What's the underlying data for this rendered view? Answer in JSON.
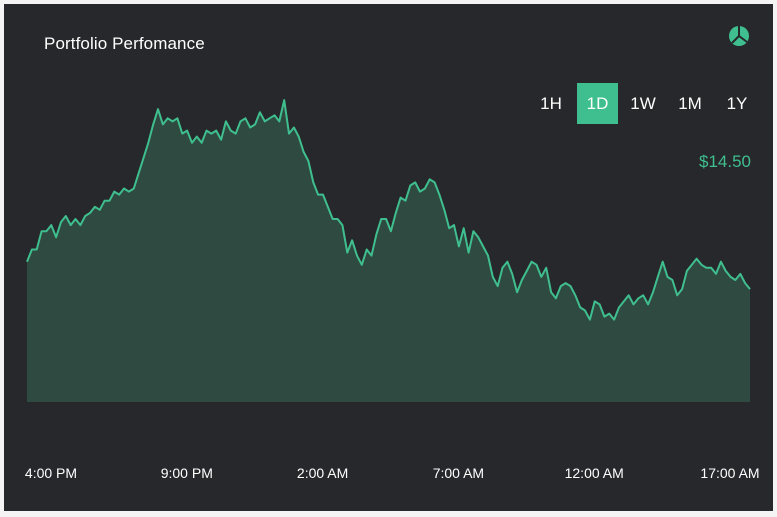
{
  "header": {
    "title": "Portfolio Perfomance",
    "icon": "pie-chart-icon"
  },
  "time_ranges": [
    {
      "label": "1H",
      "active": false
    },
    {
      "label": "1D",
      "active": true
    },
    {
      "label": "1W",
      "active": false
    },
    {
      "label": "1M",
      "active": false
    },
    {
      "label": "1Y",
      "active": false
    }
  ],
  "current_value": "$14.50",
  "colors": {
    "background": "#27282b",
    "accent": "#3fbf8f",
    "area_fill": "#2f4a40",
    "text": "#ffffff"
  },
  "chart_data": {
    "type": "area",
    "x_tick_labels": [
      "4:00 PM",
      "9:00 PM",
      "2:00 AM",
      "7:00 AM",
      "12:00 AM",
      "17:00 AM"
    ],
    "x": [
      0,
      1,
      2,
      3,
      4,
      5,
      6,
      7,
      8,
      9,
      10,
      11,
      12,
      13,
      14,
      15,
      16,
      17,
      18,
      19,
      20,
      21,
      22,
      23,
      24,
      25,
      26,
      27,
      28,
      29,
      30,
      31,
      32,
      33,
      34,
      35,
      36,
      37,
      38,
      39,
      40,
      41,
      42,
      43,
      44,
      45,
      46,
      47,
      48,
      49,
      50,
      51,
      52,
      53,
      54,
      55,
      56,
      57,
      58,
      59,
      60,
      61,
      62,
      63,
      64,
      65,
      66,
      67,
      68,
      69,
      70,
      71,
      72,
      73,
      74,
      75,
      76,
      77,
      78,
      79,
      80,
      81,
      82,
      83,
      84,
      85,
      86,
      87,
      88,
      89,
      90,
      91,
      92,
      93,
      94,
      95,
      96,
      97,
      98,
      99,
      100,
      101,
      102,
      103,
      104,
      105,
      106,
      107,
      108,
      109,
      110,
      111,
      112,
      113,
      114,
      115,
      116,
      117,
      118,
      119,
      120,
      121,
      122,
      123,
      124,
      125,
      126,
      127,
      128,
      129,
      130,
      131,
      132,
      133,
      134,
      135,
      136,
      137,
      138,
      139,
      140,
      141,
      142,
      143,
      144,
      145,
      146,
      147,
      148,
      149
    ],
    "values": [
      46,
      50,
      50,
      56,
      56,
      58,
      54,
      59,
      61,
      58,
      60,
      58,
      61,
      62,
      64,
      63,
      66,
      66,
      69,
      68,
      70,
      69,
      70,
      75,
      80,
      85,
      91,
      96,
      91,
      93,
      92,
      93,
      88,
      89,
      85,
      87,
      85,
      89,
      88,
      89,
      86,
      92,
      89,
      88,
      92,
      93,
      90,
      91,
      95,
      92,
      93,
      94,
      92,
      99,
      88,
      90,
      87,
      82,
      79,
      72,
      68,
      68,
      64,
      60,
      60,
      58,
      49,
      53,
      48,
      45,
      50,
      48,
      55,
      60,
      60,
      56,
      62,
      67,
      66,
      71,
      72,
      69,
      70,
      73,
      72,
      68,
      63,
      57,
      58,
      51,
      57,
      49,
      56,
      54,
      51,
      48,
      41,
      38,
      44,
      46,
      42,
      36,
      40,
      43,
      46,
      45,
      41,
      44,
      36,
      34,
      38,
      39,
      38,
      35,
      31,
      30,
      27,
      33,
      32,
      28,
      29,
      27,
      31,
      33,
      35,
      32,
      34,
      35,
      32,
      36,
      41,
      46,
      41,
      40,
      35,
      37,
      43,
      45,
      47,
      45,
      44,
      44,
      42,
      46,
      43,
      41,
      40,
      42,
      39,
      37
    ],
    "ylim": [
      0,
      100
    ]
  }
}
